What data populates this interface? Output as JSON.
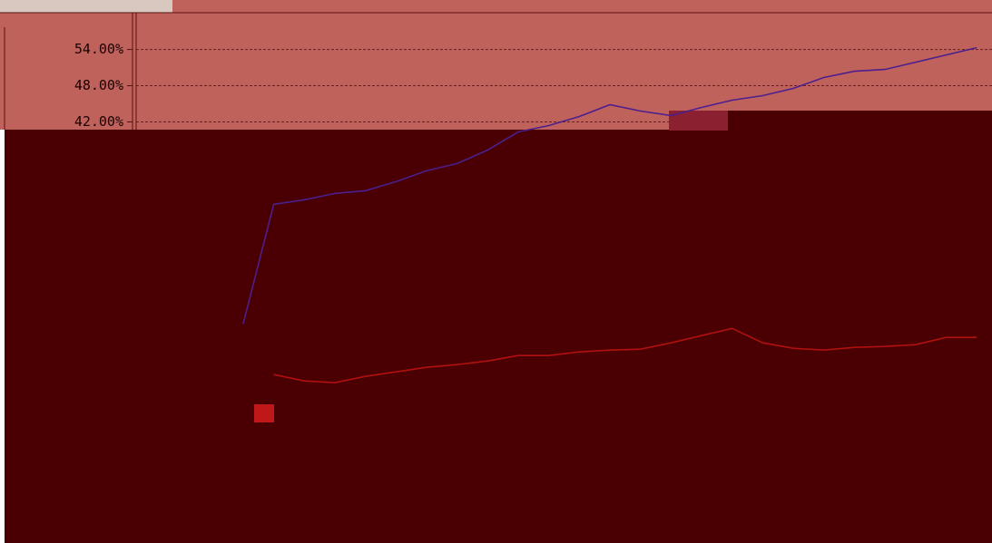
{
  "chart_data": {
    "type": "line",
    "categories": [
      null,
      null,
      null,
      null,
      null,
      null,
      null,
      null,
      null,
      null,
      null,
      null,
      null,
      null,
      null,
      null,
      null,
      null,
      null,
      null,
      null,
      null,
      null,
      null,
      null,
      null,
      null,
      null
    ],
    "series": [
      {
        "color": "#4b1f8e",
        "values": [
          null,
          null,
          null,
          8.55,
          28.35,
          29.1,
          30.15,
          30.6,
          32.1,
          33.9,
          35.1,
          37.35,
          40.35,
          41.4,
          42.9,
          44.85,
          43.8,
          43.05,
          44.4,
          45.6,
          46.35,
          47.55,
          49.35,
          50.4,
          50.7,
          51.9,
          53.1,
          54.3
        ]
      },
      {
        "color": "#b01010",
        "values": [
          null,
          null,
          null,
          null,
          0.15,
          -0.9,
          -1.2,
          -0.15,
          0.6,
          1.35,
          1.8,
          2.4,
          3.3,
          3.3,
          3.9,
          4.2,
          4.35,
          5.4,
          6.6,
          7.8,
          5.4,
          4.5,
          4.2,
          4.65,
          4.8,
          5.1,
          6.3,
          6.3
        ]
      }
    ],
    "ylim": [
      -27.75,
      60
    ],
    "yticks": [
      {
        "value": 42,
        "label": "42.00%"
      },
      {
        "value": 48,
        "label": "48.00%"
      },
      {
        "value": 54,
        "label": "54.00%"
      }
    ],
    "grid": true
  }
}
